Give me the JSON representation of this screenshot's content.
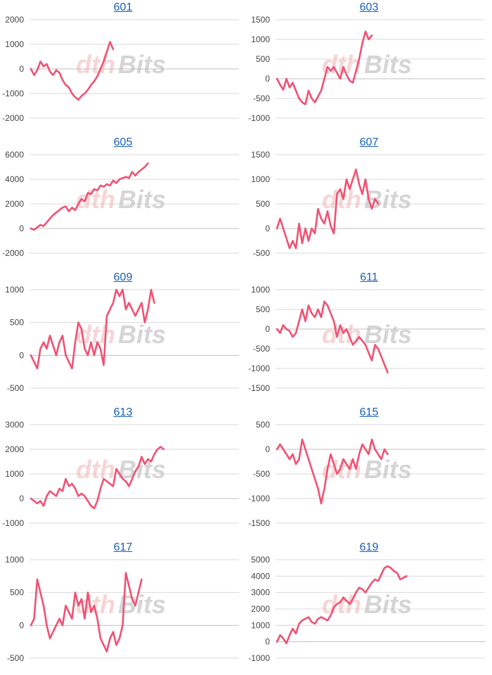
{
  "series_color": "#f05273",
  "watermark": {
    "part1": "dth",
    "part2": "Bits"
  },
  "chart_data": [
    {
      "type": "line",
      "title": "601",
      "ylim": [
        -2000,
        2000
      ],
      "yticks": [
        2000,
        1000,
        0,
        -1000,
        -2000
      ],
      "values": [
        0,
        -250,
        -50,
        300,
        100,
        200,
        -100,
        -250,
        -50,
        -150,
        -450,
        -650,
        -750,
        -1000,
        -1150,
        -1250,
        -1100,
        -1000,
        -850,
        -650,
        -500,
        -300,
        0,
        300,
        700,
        1100,
        800
      ]
    },
    {
      "type": "line",
      "title": "603",
      "ylim": [
        -1000,
        1500
      ],
      "yticks": [
        1500,
        1000,
        500,
        0,
        -500,
        -1000
      ],
      "values": [
        0,
        -150,
        -280,
        0,
        -220,
        -100,
        -300,
        -500,
        -600,
        -650,
        -300,
        -500,
        -600,
        -450,
        -300,
        0,
        300,
        200,
        300,
        150,
        0,
        300,
        100,
        -50,
        -100,
        200,
        500,
        900,
        1200,
        1000,
        1100
      ]
    },
    {
      "type": "line",
      "title": "605",
      "ylim": [
        -2000,
        6000
      ],
      "yticks": [
        6000,
        4000,
        2000,
        0,
        -2000
      ],
      "values": [
        0,
        -100,
        100,
        300,
        200,
        500,
        800,
        1100,
        1300,
        1500,
        1700,
        1800,
        1400,
        1700,
        1500,
        2000,
        2400,
        2200,
        2900,
        2800,
        3200,
        3100,
        3500,
        3400,
        3600,
        3500,
        3900,
        3700,
        4000,
        4100,
        4200,
        4100,
        4600,
        4300,
        4600,
        4800,
        5000,
        5300
      ]
    },
    {
      "type": "line",
      "title": "607",
      "ylim": [
        -500,
        1500
      ],
      "yticks": [
        1500,
        1000,
        500,
        0,
        -500
      ],
      "values": [
        0,
        200,
        0,
        -200,
        -400,
        -250,
        -400,
        100,
        -300,
        0,
        -250,
        0,
        -100,
        400,
        200,
        100,
        350,
        50,
        -100,
        700,
        800,
        600,
        1000,
        800,
        1000,
        1200,
        900,
        700,
        1000,
        600,
        400,
        600,
        500
      ]
    },
    {
      "type": "line",
      "title": "609",
      "ylim": [
        -500,
        1000
      ],
      "yticks": [
        1000,
        500,
        0,
        -500
      ],
      "values": [
        0,
        -100,
        -200,
        100,
        200,
        100,
        300,
        150,
        0,
        200,
        300,
        0,
        -100,
        -200,
        200,
        500,
        400,
        100,
        0,
        200,
        0,
        200,
        100,
        -150,
        600,
        700,
        800,
        1000,
        900,
        1000,
        700,
        800,
        700,
        600,
        700,
        800,
        500,
        700,
        1000,
        800
      ]
    },
    {
      "type": "line",
      "title": "611",
      "ylim": [
        -1500,
        1000
      ],
      "yticks": [
        1000,
        500,
        0,
        -500,
        -1000,
        -1500
      ],
      "values": [
        0,
        -100,
        100,
        0,
        -50,
        -200,
        -100,
        200,
        500,
        200,
        600,
        400,
        300,
        500,
        300,
        700,
        600,
        400,
        200,
        -200,
        100,
        -100,
        0,
        -200,
        -400,
        -300,
        -200,
        -300,
        -400,
        -600,
        -800,
        -400,
        -500,
        -700,
        -900,
        -1100
      ]
    },
    {
      "type": "line",
      "title": "613",
      "ylim": [
        -1000,
        3000
      ],
      "yticks": [
        3000,
        2000,
        1000,
        0,
        -1000
      ],
      "values": [
        0,
        -100,
        -200,
        -100,
        -300,
        100,
        300,
        200,
        100,
        400,
        300,
        800,
        500,
        600,
        400,
        100,
        200,
        100,
        -100,
        -300,
        -400,
        -100,
        400,
        800,
        700,
        600,
        500,
        1200,
        1000,
        800,
        700,
        500,
        800,
        1100,
        1300,
        1700,
        1400,
        1600,
        1500,
        1800,
        2000,
        2100,
        2000
      ]
    },
    {
      "type": "line",
      "title": "615",
      "ylim": [
        -1500,
        500
      ],
      "yticks": [
        500,
        0,
        -500,
        -1000,
        -1500
      ],
      "values": [
        0,
        100,
        0,
        -100,
        -200,
        -100,
        -300,
        -200,
        200,
        0,
        -200,
        -400,
        -600,
        -800,
        -1100,
        -800,
        -400,
        -100,
        -300,
        -500,
        -400,
        -200,
        -300,
        -400,
        -200,
        -400,
        -100,
        100,
        0,
        -100,
        200,
        0,
        -100,
        -200,
        0,
        -100
      ]
    },
    {
      "type": "line",
      "title": "617",
      "ylim": [
        -500,
        1000
      ],
      "yticks": [
        1000,
        500,
        0,
        -500
      ],
      "values": [
        0,
        100,
        700,
        500,
        300,
        0,
        -200,
        -100,
        0,
        100,
        0,
        300,
        200,
        100,
        500,
        300,
        400,
        100,
        500,
        200,
        300,
        100,
        -200,
        -300,
        -400,
        -200,
        -100,
        -300,
        -200,
        0,
        800,
        600,
        400,
        300,
        500,
        700
      ]
    },
    {
      "type": "line",
      "title": "619",
      "ylim": [
        -1000,
        5000
      ],
      "yticks": [
        5000,
        4000,
        3000,
        2000,
        1000,
        0,
        -1000
      ],
      "values": [
        0,
        400,
        200,
        -100,
        400,
        800,
        500,
        1100,
        1300,
        1400,
        1500,
        1200,
        1100,
        1400,
        1500,
        1400,
        1300,
        1600,
        2100,
        2300,
        2400,
        2700,
        2500,
        2300,
        2600,
        3000,
        3300,
        3200,
        3000,
        3300,
        3600,
        3800,
        3700,
        4100,
        4500,
        4600,
        4500,
        4300,
        4200,
        3800,
        3900,
        4000
      ]
    }
  ]
}
